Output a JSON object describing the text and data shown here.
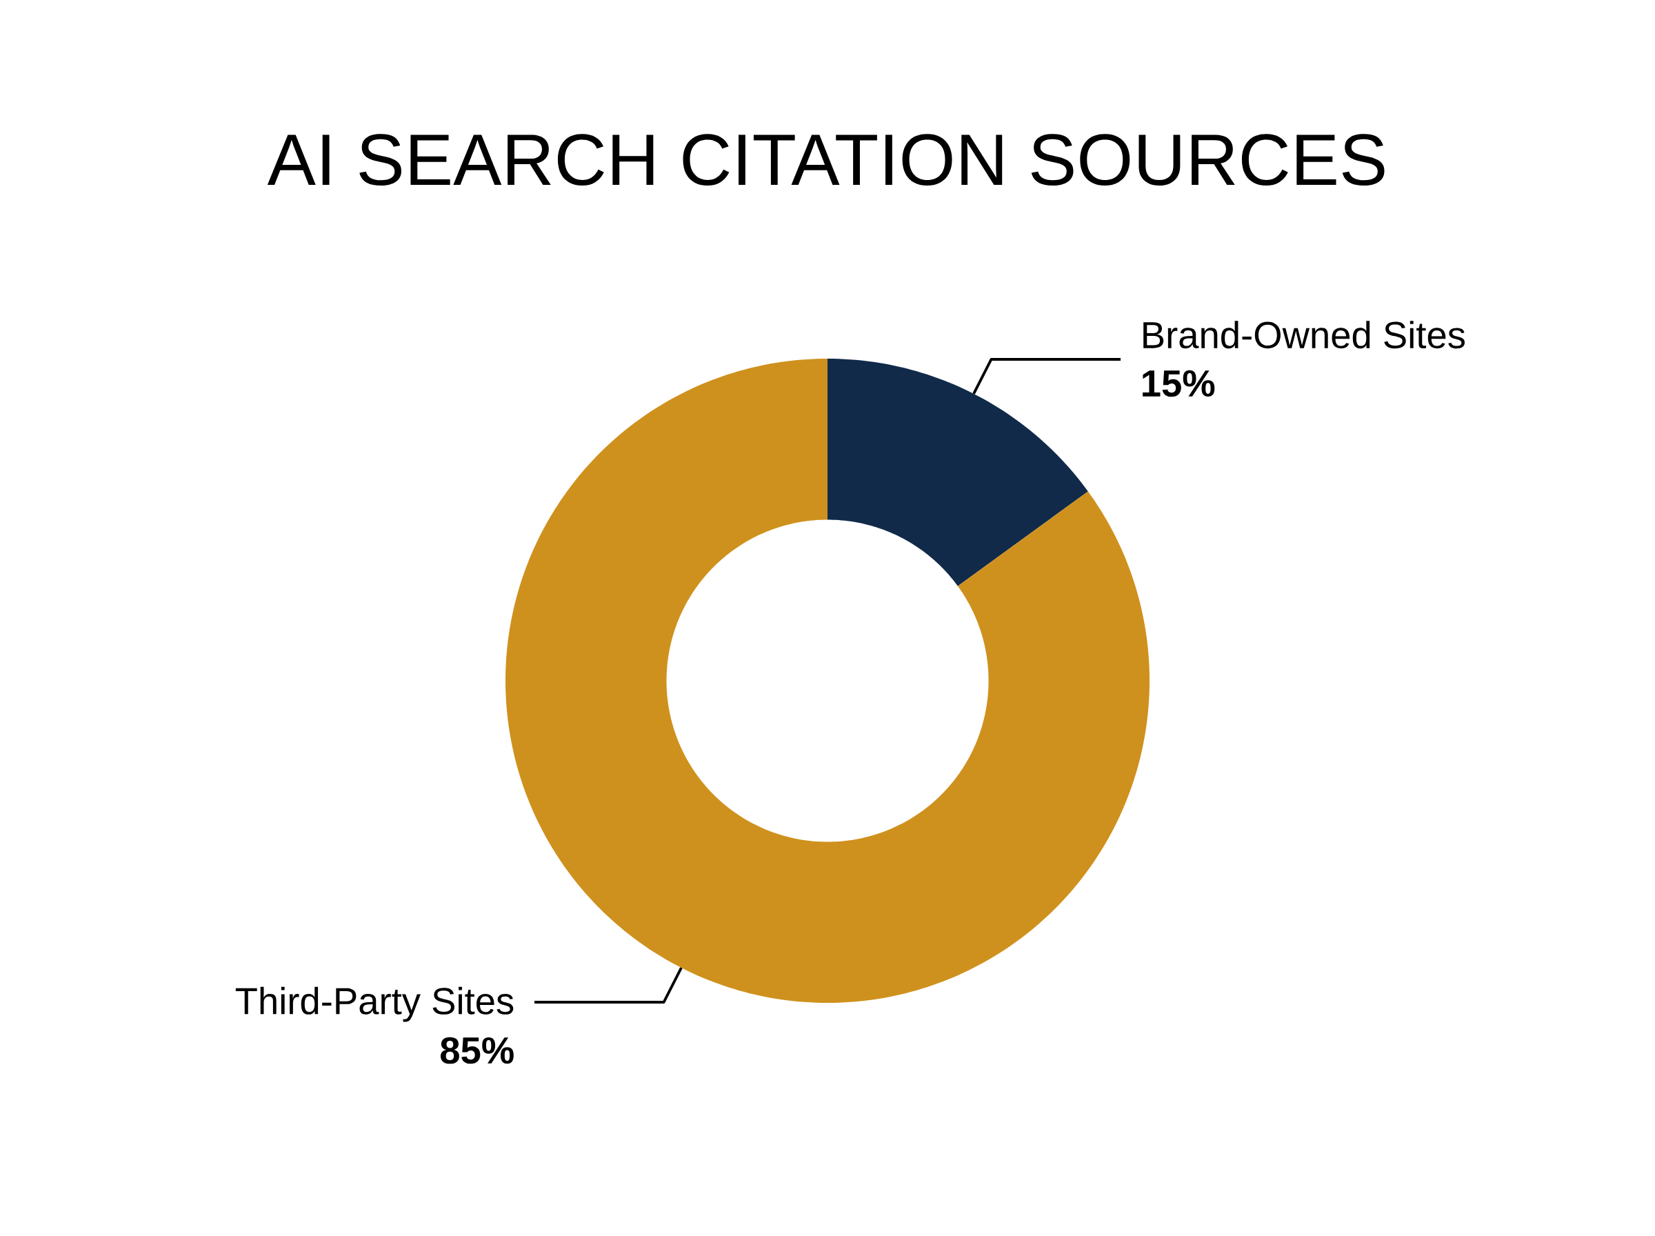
{
  "chart_data": {
    "type": "donut",
    "title": "AI SEARCH CITATION SOURCES",
    "categories": [
      "Brand-Owned Sites",
      "Third-Party Sites"
    ],
    "values": [
      15,
      85
    ],
    "colors": [
      "#112a4a",
      "#cf911d"
    ],
    "value_labels": [
      "15%",
      "85%"
    ]
  }
}
